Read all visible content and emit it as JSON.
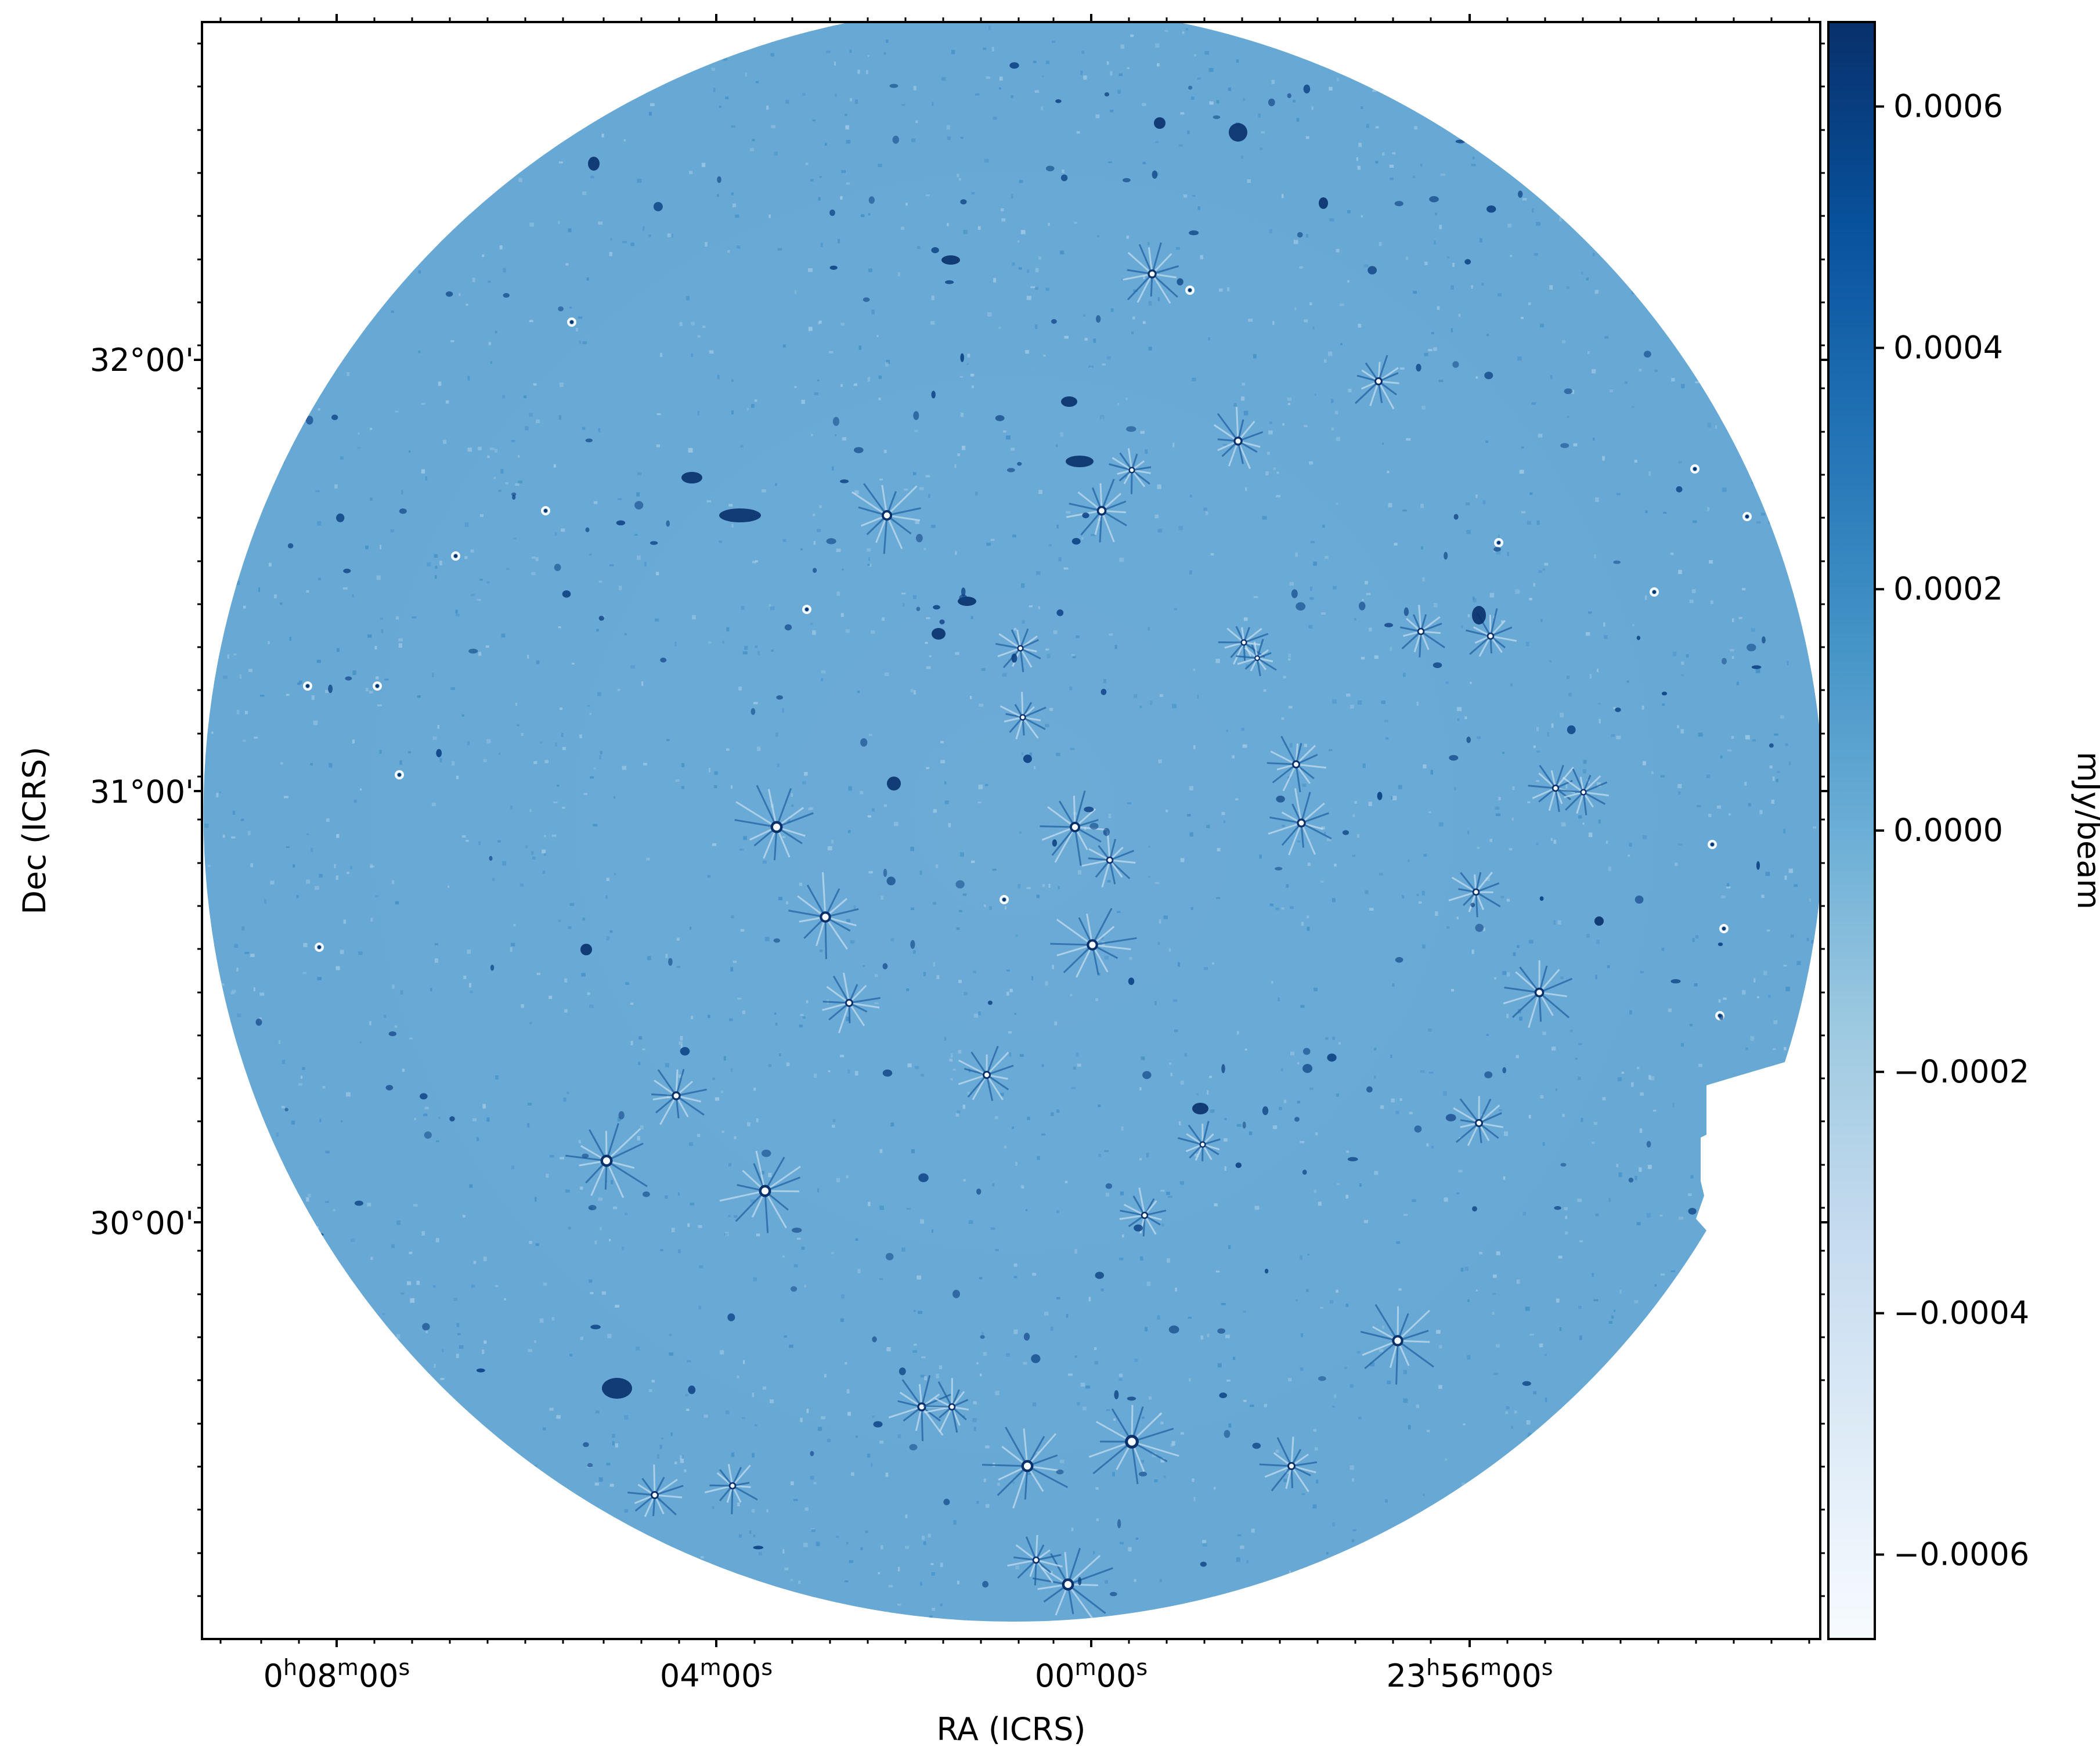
{
  "chart_data": {
    "type": "heatmap",
    "title": "",
    "xlabel": "RA (ICRS)",
    "ylabel": "Dec (ICRS)",
    "colorbar_label": "mJy/beam",
    "colormap": "Blues",
    "colors": {
      "low": "#f7fbff",
      "mid": "#6baed6",
      "high": "#08306b",
      "background": "#6aaad6"
    },
    "x_ticks": [
      {
        "label": "0h08m00s",
        "h": "0",
        "m": "08",
        "s": "00"
      },
      {
        "label": "04m00s",
        "h": "",
        "m": "04",
        "s": "00"
      },
      {
        "label": "00m00s",
        "h": "",
        "m": "00",
        "s": "00"
      },
      {
        "label": "23h56m00s",
        "h": "23",
        "m": "56",
        "s": "00"
      }
    ],
    "y_ticks": [
      "32°00'",
      "31°00'",
      "30°00'"
    ],
    "colorbar": {
      "vmin": -0.00067,
      "vmax": 0.00067,
      "ticks": [
        0.0006,
        0.0004,
        0.0002,
        0.0,
        -0.0002,
        -0.0004,
        -0.0006
      ],
      "tick_labels": [
        "0.0006",
        "0.0004",
        "0.0002",
        "0.0000",
        "−0.0002",
        "−0.0004",
        "−0.0006"
      ]
    },
    "field": "circular radio continuum image centered near RA 0h00m, Dec ~31°"
  }
}
